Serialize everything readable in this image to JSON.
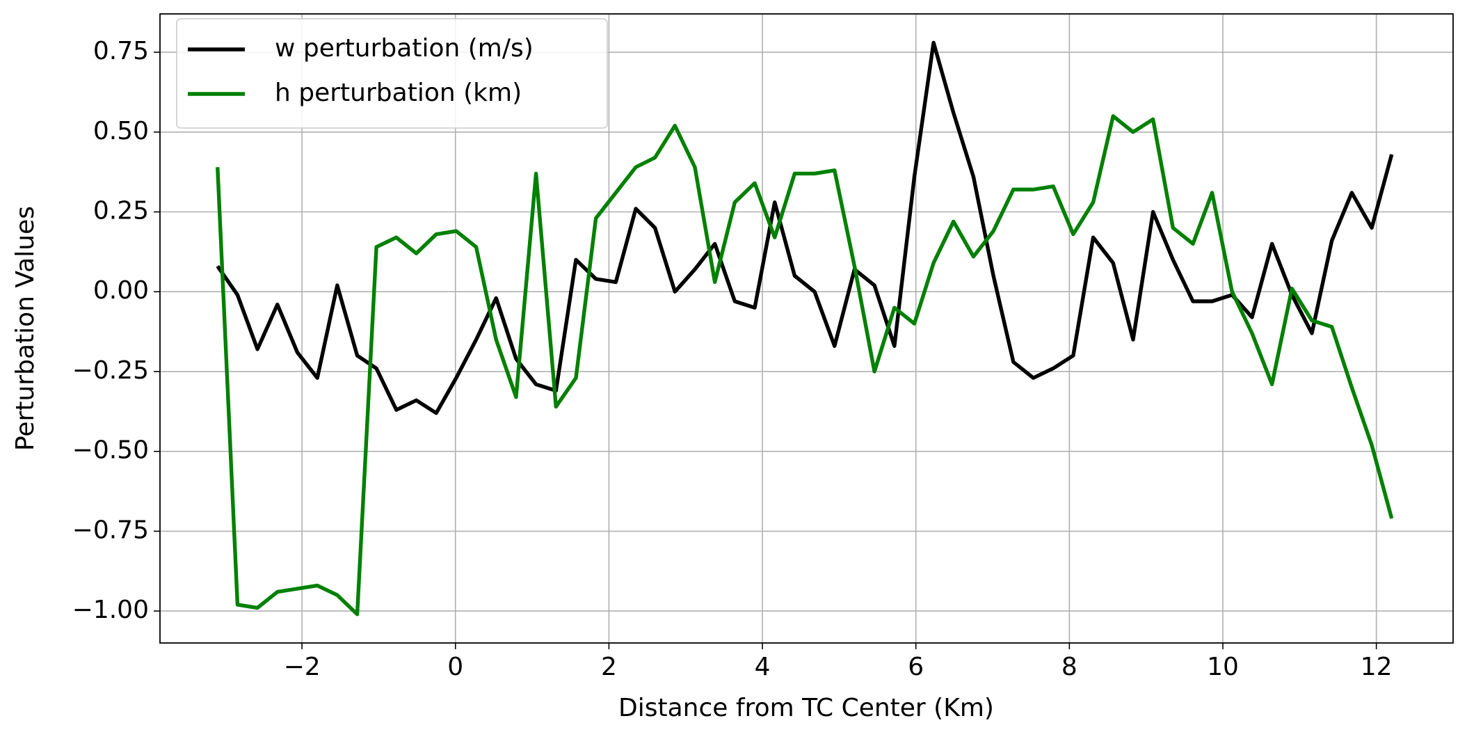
{
  "chart_data": {
    "type": "line",
    "xlabel": "Distance from TC Center (Km)",
    "ylabel": "Perturbation Values",
    "x": [
      -3.1,
      -2.84,
      -2.58,
      -2.32,
      -2.06,
      -1.8,
      -1.54,
      -1.28,
      -1.03,
      -0.77,
      -0.51,
      -0.25,
      0.01,
      0.27,
      0.53,
      0.79,
      1.05,
      1.31,
      1.57,
      1.83,
      2.09,
      2.35,
      2.6,
      2.86,
      3.12,
      3.38,
      3.64,
      3.9,
      4.16,
      4.42,
      4.68,
      4.94,
      5.2,
      5.46,
      5.72,
      5.98,
      6.23,
      6.49,
      6.75,
      7.01,
      7.27,
      7.53,
      7.79,
      8.05,
      8.31,
      8.57,
      8.83,
      9.09,
      9.35,
      9.61,
      9.86,
      10.12,
      10.38,
      10.64,
      10.9,
      11.16,
      11.42,
      11.68,
      11.94,
      12.2
    ],
    "series": [
      {
        "name": "w perturbation (m/s)",
        "color": "#000000",
        "values": [
          0.08,
          -0.01,
          -0.18,
          -0.04,
          -0.19,
          -0.27,
          0.02,
          -0.2,
          -0.24,
          -0.37,
          -0.34,
          -0.38,
          -0.27,
          -0.15,
          -0.02,
          -0.21,
          -0.29,
          -0.31,
          0.1,
          0.04,
          0.03,
          0.26,
          0.2,
          0.0,
          0.07,
          0.15,
          -0.03,
          -0.05,
          0.28,
          0.05,
          0.0,
          -0.17,
          0.07,
          0.02,
          -0.17,
          0.36,
          0.78,
          0.56,
          0.36,
          0.05,
          -0.22,
          -0.27,
          -0.24,
          -0.2,
          0.17,
          0.09,
          -0.15,
          0.25,
          0.1,
          -0.03,
          -0.03,
          -0.01,
          -0.08,
          0.15,
          -0.01,
          -0.13,
          0.16,
          0.31,
          0.2,
          0.43
        ]
      },
      {
        "name": "h perturbation (km)",
        "color": "#008000",
        "values": [
          0.39,
          -0.98,
          -0.99,
          -0.94,
          -0.93,
          -0.92,
          -0.95,
          -1.01,
          0.14,
          0.17,
          0.12,
          0.18,
          0.19,
          0.14,
          -0.15,
          -0.33,
          0.37,
          -0.36,
          -0.27,
          0.23,
          0.31,
          0.39,
          0.42,
          0.52,
          0.39,
          0.03,
          0.28,
          0.34,
          0.17,
          0.37,
          0.37,
          0.38,
          0.08,
          -0.25,
          -0.05,
          -0.1,
          0.09,
          0.22,
          0.11,
          0.19,
          0.32,
          0.32,
          0.33,
          0.18,
          0.28,
          0.55,
          0.5,
          0.54,
          0.2,
          0.15,
          0.31,
          0.0,
          -0.13,
          -0.29,
          0.01,
          -0.09,
          -0.11,
          -0.3,
          -0.48,
          -0.71
        ]
      }
    ],
    "xlim": [
      -3.85,
      13.0
    ],
    "ylim": [
      -1.1,
      0.87
    ],
    "xticks": [
      {
        "value": -2,
        "label": "−2"
      },
      0,
      2,
      4,
      6,
      8,
      10,
      12
    ],
    "yticks": [
      {
        "value": -1.0,
        "label": "−1.00"
      },
      {
        "value": -0.75,
        "label": "−0.75"
      },
      {
        "value": -0.5,
        "label": "−0.50"
      },
      {
        "value": -0.25,
        "label": "−0.25"
      },
      {
        "value": 0,
        "label": "0.00"
      },
      0.25,
      {
        "value": 0.5,
        "label": "0.50"
      },
      0.75
    ],
    "grid": true,
    "legend": "upper left"
  }
}
